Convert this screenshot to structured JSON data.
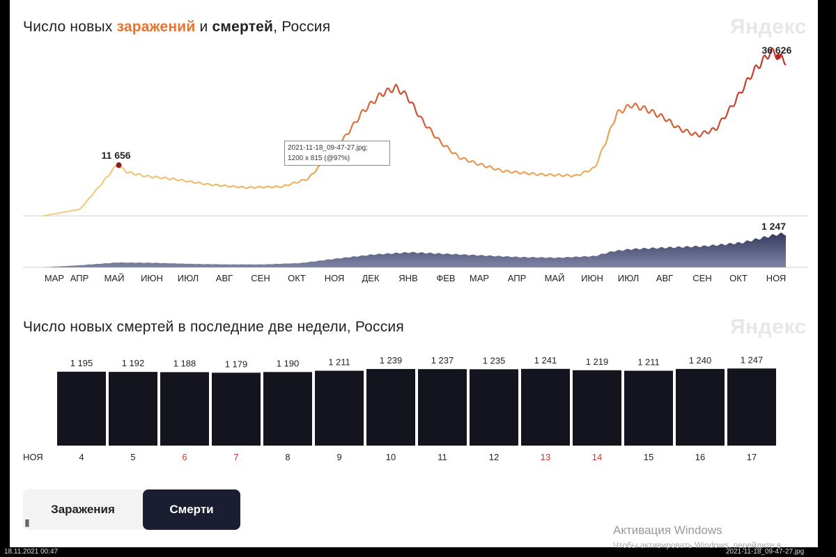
{
  "chart1": {
    "title_parts": [
      "Число новых ",
      "заражений",
      " и ",
      "смертей",
      ", Россия"
    ],
    "logo": "Яндекс"
  },
  "chart2": {
    "title": "Число новых смертей в последние две недели, Россия",
    "logo": "Яндекс"
  },
  "tooltip": {
    "line1": "2021-11-18_09-47-27.jpg;",
    "line2": "1200 x 815 (@97%)"
  },
  "tabs": {
    "infections": "Заражения",
    "deaths": "Смерти",
    "active": "deaths"
  },
  "overlay": {
    "activation": "Активация Windows",
    "activation_sub": "Чтобы активировать Windows, перейдите в",
    "status_left": "18.11.2021 00:47",
    "status_right": "2021-11-18_09-47-27.jpg"
  },
  "colors": {
    "infect_low": "#f0c070",
    "infect_high": "#c73a2c",
    "deaths_fill": "#3e4466",
    "bars": "#14141f",
    "weekend": "#d0342c"
  },
  "chart_data": [
    {
      "type": "line",
      "title": "Число новых заражений и смертей, Россия",
      "months": [
        "МАР",
        "АПР",
        "МАЙ",
        "ИЮН",
        "ИЮЛ",
        "АВГ",
        "СЕН",
        "ОКТ",
        "НОЯ",
        "ДЕК",
        "ЯНВ",
        "ФЕВ",
        "МАР",
        "АПР",
        "МАЙ",
        "ИЮН",
        "ИЮЛ",
        "АВГ",
        "СЕН",
        "ОКТ",
        "НОЯ"
      ],
      "series": [
        {
          "name": "заражений",
          "x": [
            0,
            1,
            1.5,
            2,
            2.3,
            2.8,
            3.5,
            4.5,
            5.5,
            6.5,
            7.2,
            7.7,
            8.2,
            8.7,
            9.2,
            9.6,
            9.9,
            10.3,
            10.8,
            11.3,
            11.8,
            12.5,
            13.5,
            14.5,
            15.0,
            15.3,
            15.6,
            16.0,
            16.4,
            16.9,
            17.3,
            17.8,
            18.3,
            18.8,
            19.3,
            19.8,
            20.0,
            20.2
          ],
          "y": [
            0,
            1500,
            6500,
            11656,
            10000,
            9100,
            8500,
            7200,
            6500,
            6700,
            8500,
            13000,
            18000,
            24000,
            28000,
            29500,
            27500,
            22000,
            17000,
            13500,
            12000,
            10300,
            9500,
            9200,
            11000,
            17000,
            23500,
            25500,
            24500,
            22500,
            20000,
            18500,
            20000,
            26000,
            33000,
            37800,
            36626,
            35500
          ]
        },
        {
          "name": "смертей",
          "x": [
            0,
            1,
            2,
            3,
            4,
            5,
            6,
            7,
            8,
            9,
            10,
            11,
            12,
            13,
            14,
            15,
            15.5,
            16,
            17,
            18,
            19,
            20,
            20.2
          ],
          "y": [
            0,
            80,
            180,
            170,
            130,
            110,
            110,
            160,
            330,
            480,
            560,
            500,
            440,
            380,
            360,
            420,
            600,
            680,
            740,
            790,
            920,
            1240,
            1247
          ]
        }
      ],
      "annotations": [
        {
          "label": "11 656",
          "x": 2,
          "y": 11656
        },
        {
          "label": "36 626",
          "x": 20.0,
          "y": 36626
        },
        {
          "label": "1 247",
          "x": 20.2,
          "y": 1247
        }
      ],
      "ylim": [
        0,
        40000
      ],
      "deaths_ylim": [
        0,
        1400
      ]
    },
    {
      "type": "bar",
      "title": "Число новых смертей в последние две недели, Россия",
      "month_label": "НОЯ",
      "categories": [
        "4",
        "5",
        "6",
        "7",
        "8",
        "9",
        "10",
        "11",
        "12",
        "13",
        "14",
        "15",
        "16",
        "17"
      ],
      "values": [
        1195,
        1192,
        1188,
        1179,
        1190,
        1211,
        1239,
        1237,
        1235,
        1241,
        1219,
        1211,
        1240,
        1247
      ],
      "labels": [
        "1 195",
        "1 192",
        "1 188",
        "1 179",
        "1 190",
        "1 211",
        "1 239",
        "1 237",
        "1 235",
        "1 241",
        "1 219",
        "1 211",
        "1 240",
        "1 247"
      ],
      "weekend": [
        "6",
        "7",
        "13",
        "14"
      ]
    }
  ]
}
